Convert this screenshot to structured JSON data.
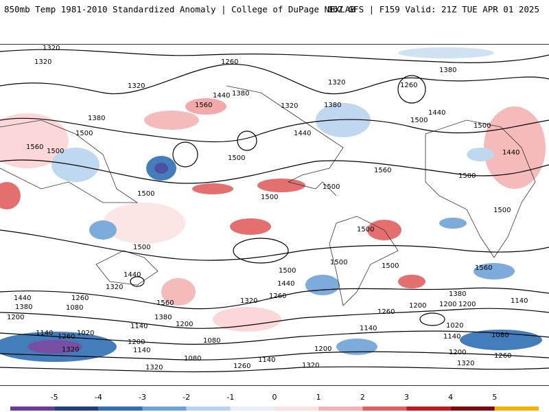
{
  "header": {
    "title_left": "850mb Temp 1981-2010 Standardized Anomaly | College of DuPage NEXLAB",
    "title_right": "06Z GFS | F159 Valid: 21Z TUE APR 01 2025"
  },
  "colorbar": {
    "ticks": [
      "-5",
      "-4",
      "-3",
      "-2",
      "-1",
      "0",
      "1",
      "2",
      "3",
      "4",
      "5"
    ],
    "colors": [
      "#6a3d9a",
      "#1f3f7a",
      "#2f6fb5",
      "#6fa3d8",
      "#b8d4ee",
      "#e6f0fa",
      "#fbe3e3",
      "#f4b3b3",
      "#e0605f",
      "#b81d24",
      "#7a0a14",
      "#f0b400"
    ]
  },
  "map": {
    "contour_labels": [
      "1320",
      "1320",
      "1260",
      "1380",
      "1320",
      "1260",
      "1320",
      "1440",
      "1560",
      "1380",
      "1380",
      "1320",
      "1440",
      "1500",
      "1500",
      "1380",
      "1560",
      "1500",
      "1500",
      "1440",
      "1500",
      "1560",
      "1500",
      "1500",
      "1500",
      "1500",
      "1500",
      "1440",
      "1500",
      "1560",
      "1500",
      "1500",
      "1500",
      "1440",
      "1440",
      "1320",
      "1500",
      "1380",
      "1200",
      "1260",
      "1080",
      "1560",
      "1320",
      "1260",
      "1440",
      "1380",
      "1200",
      "1380",
      "1200",
      "1140",
      "1140",
      "1260",
      "1020",
      "1320",
      "1200",
      "1140",
      "1080",
      "1140",
      "1080",
      "1200",
      "1260",
      "1200",
      "1140",
      "1200",
      "1260",
      "1020",
      "1140",
      "1080",
      "1200",
      "1320",
      "1320",
      "1260",
      "1140",
      "1320"
    ]
  }
}
